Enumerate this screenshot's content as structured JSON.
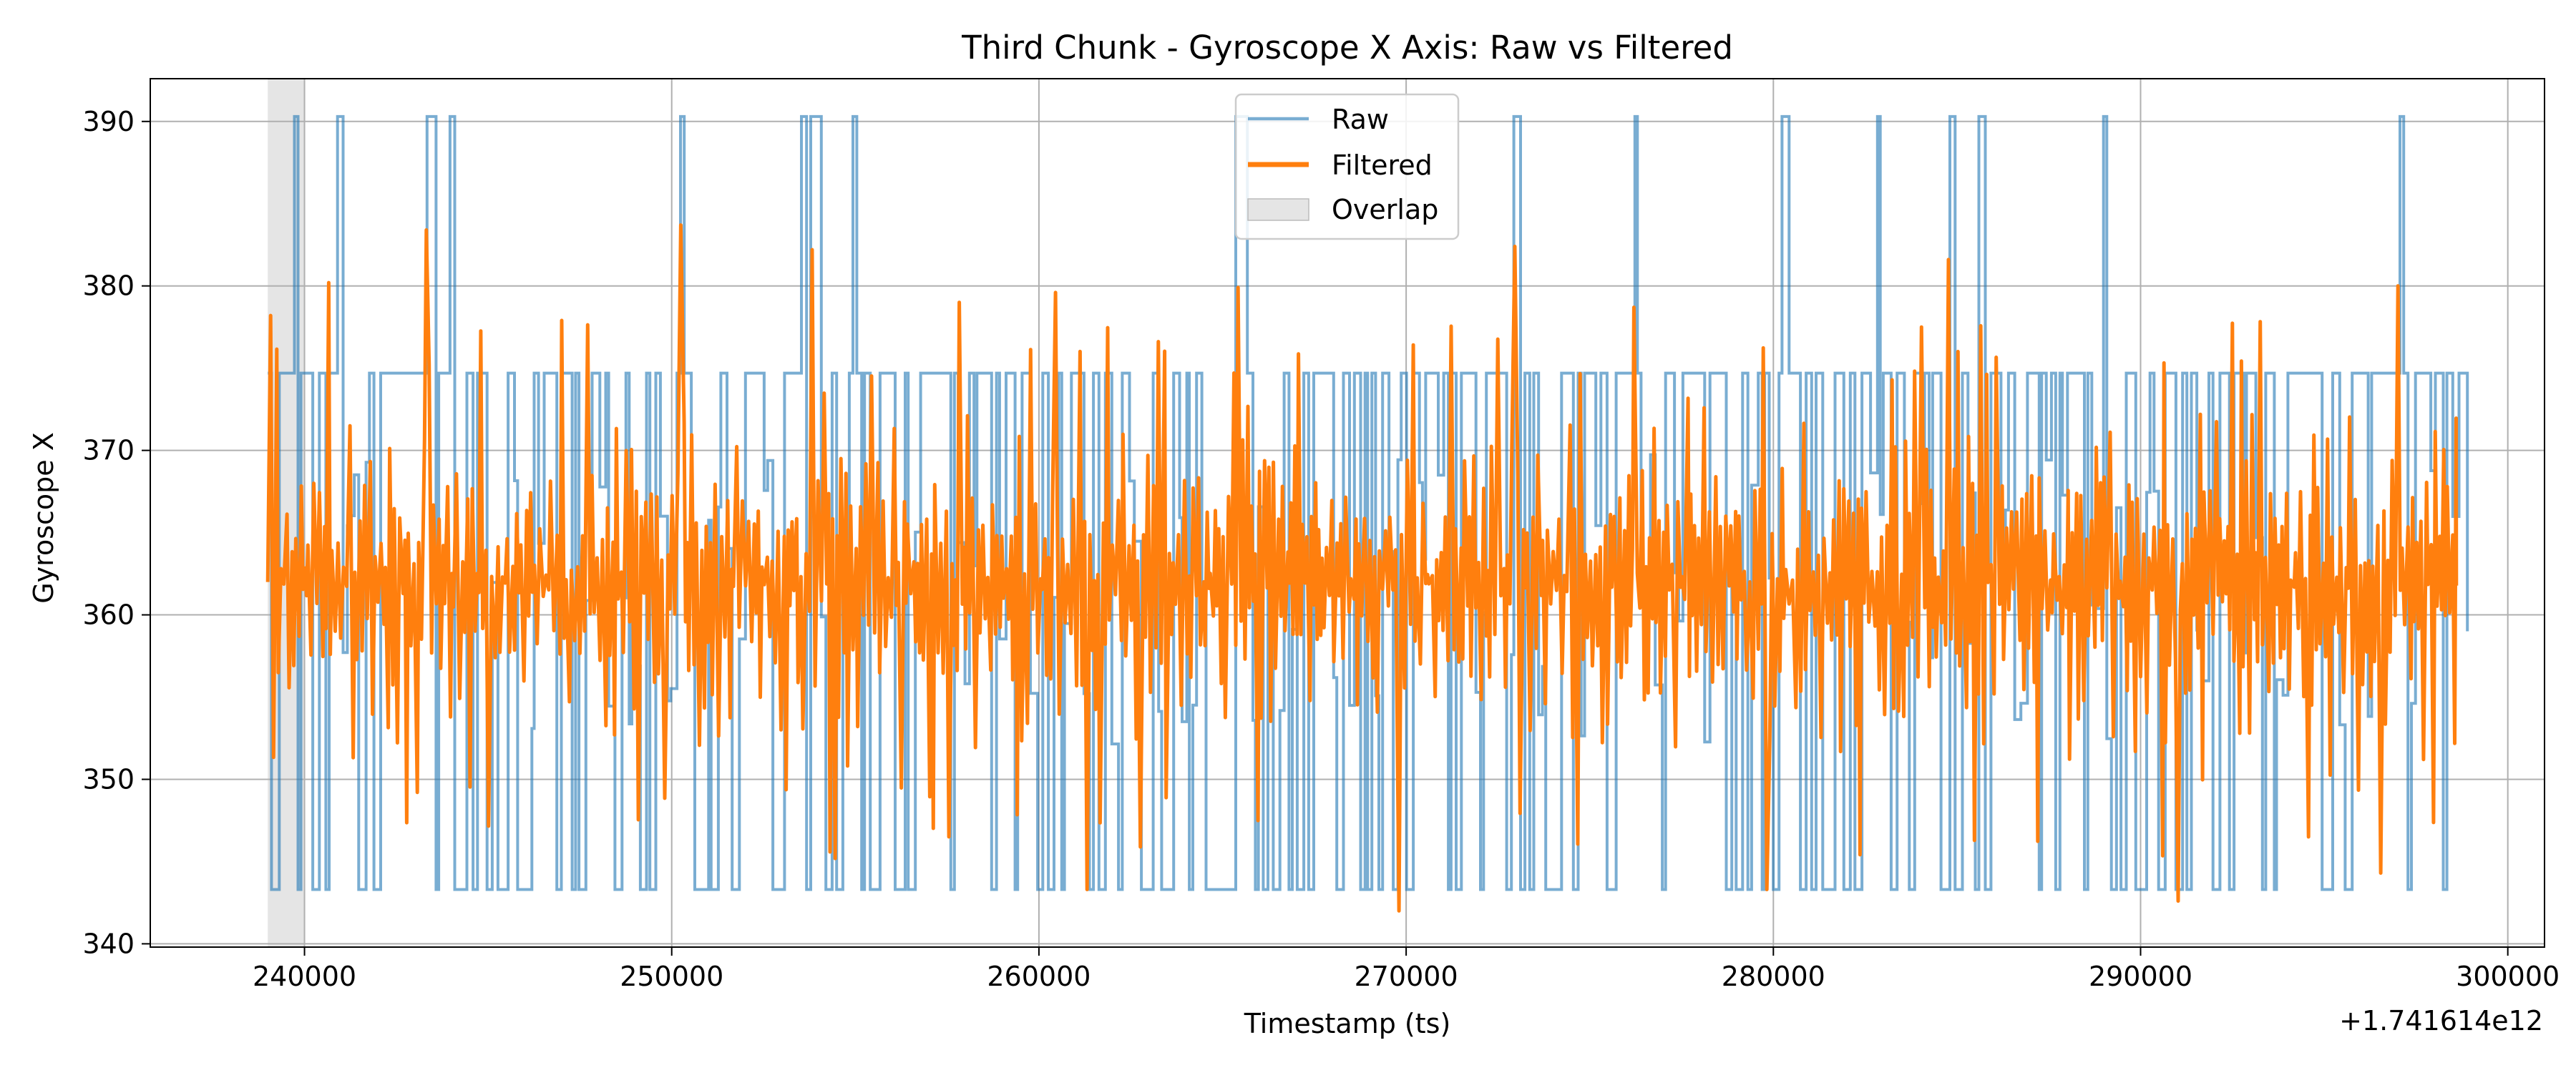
{
  "chart_data": {
    "type": "line",
    "title": "Third Chunk - Gyroscope X Axis: Raw vs Filtered",
    "xlabel": "Timestamp (ts)",
    "ylabel": "Gyroscope X",
    "x_offset_label": "+1.741614e12",
    "xlim": [
      235800,
      301000
    ],
    "ylim": [
      339.8,
      392.6
    ],
    "x_ticks": [
      240000,
      250000,
      260000,
      270000,
      280000,
      290000,
      300000
    ],
    "x_tick_labels": [
      "240000",
      "250000",
      "260000",
      "270000",
      "280000",
      "290000",
      "300000"
    ],
    "y_ticks": [
      340,
      350,
      360,
      370,
      380,
      390
    ],
    "y_tick_labels": [
      "340",
      "350",
      "360",
      "370",
      "380",
      "390"
    ],
    "grid": true,
    "legend_position": "top-center",
    "overlap_region": {
      "label": "Overlap",
      "x_start": 239000,
      "x_end": 240000,
      "color": "#d3d3d3"
    },
    "raw": {
      "name": "Raw",
      "color": "#1f77b4",
      "x_start": 239000,
      "x_end": 298900,
      "upper_level": 374.7,
      "lower_level": 343.3,
      "spike_level": 390.3,
      "end_value": 359.0,
      "spike_x": [
        239700,
        240900,
        243300,
        243400,
        243900,
        250200,
        253400,
        253700,
        253800,
        254900,
        265300,
        265500,
        272900,
        276200,
        280200,
        282800,
        284700,
        285500,
        288900,
        297000
      ]
    },
    "filtered": {
      "name": "Filtered",
      "color": "#ff7f0e",
      "x_start": 239000,
      "x_end": 298600,
      "center": 362,
      "typical_max": 374,
      "typical_min": 350,
      "peaks": [
        {
          "x": 239000,
          "y": 378.2
        },
        {
          "x": 240600,
          "y": 380.2
        },
        {
          "x": 243300,
          "y": 383.4
        },
        {
          "x": 247000,
          "y": 377.9
        },
        {
          "x": 250200,
          "y": 383.7
        },
        {
          "x": 253800,
          "y": 382.2
        },
        {
          "x": 257800,
          "y": 379.0
        },
        {
          "x": 260400,
          "y": 379.6
        },
        {
          "x": 265400,
          "y": 379.9
        },
        {
          "x": 272900,
          "y": 382.4
        },
        {
          "x": 276200,
          "y": 378.7
        },
        {
          "x": 284700,
          "y": 381.6
        },
        {
          "x": 297000,
          "y": 380.0
        }
      ],
      "troughs": [
        {
          "x": 261300,
          "y": 343.3
        },
        {
          "x": 265400,
          "y": 343.3
        },
        {
          "x": 269800,
          "y": 342.0
        },
        {
          "x": 279800,
          "y": 343.3
        },
        {
          "x": 291000,
          "y": 342.6
        },
        {
          "x": 296500,
          "y": 344.3
        }
      ]
    }
  }
}
